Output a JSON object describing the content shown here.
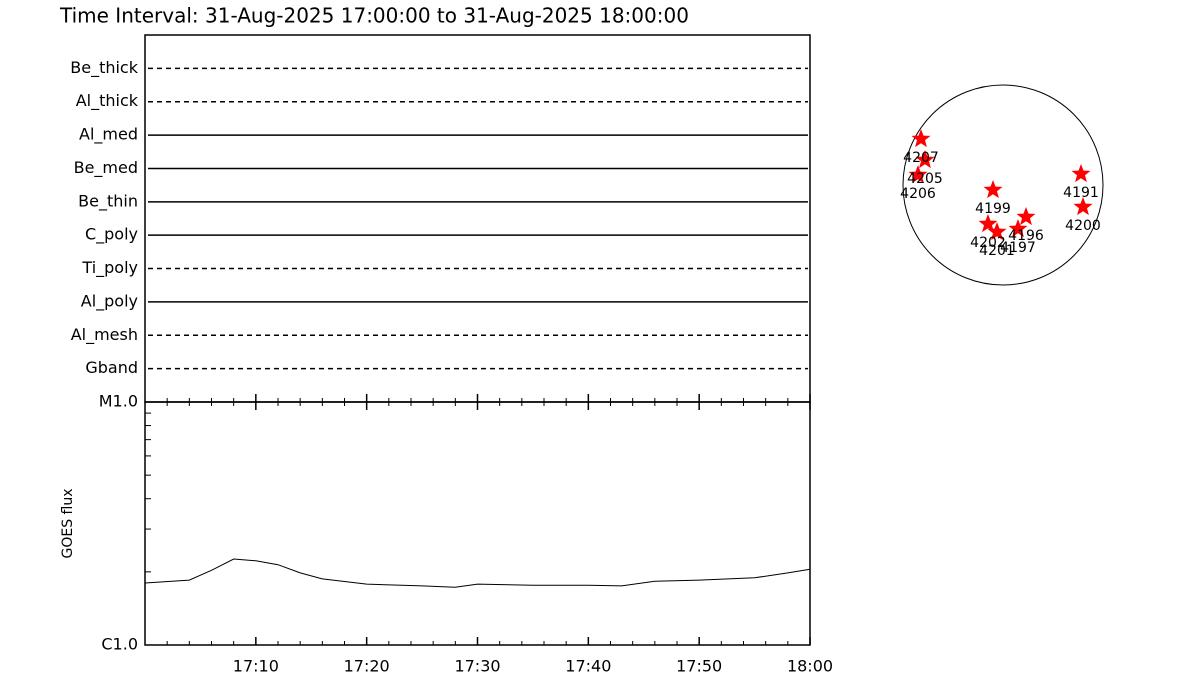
{
  "title": "Time Interval: 31-Aug-2025 17:00:00 to 31-Aug-2025 18:00:00",
  "chart_data": [
    {
      "type": "timeline",
      "categories": [
        "Be_thick",
        "Al_thick",
        "Al_med",
        "Be_med",
        "Be_thin",
        "C_poly",
        "Ti_poly",
        "Al_poly",
        "Al_mesh",
        "Gband"
      ],
      "line_styles": [
        "dashed",
        "dashed",
        "solid",
        "solid",
        "solid",
        "solid",
        "dashed",
        "solid",
        "dashed",
        "dashed"
      ],
      "xlim": [
        "17:00",
        "18:00"
      ]
    },
    {
      "type": "line",
      "ylabel": "GOES flux",
      "log_y": true,
      "color": "#000000",
      "x": [
        "17:00",
        "17:04",
        "17:06",
        "17:08",
        "17:10",
        "17:12",
        "17:14",
        "17:16",
        "17:20",
        "17:25",
        "17:28",
        "17:30",
        "17:35",
        "17:40",
        "17:43",
        "17:46",
        "17:50",
        "17:55",
        "17:58",
        "18:00"
      ],
      "values": [
        1.8e-06,
        1.85e-06,
        2.03e-06,
        2.26e-06,
        2.22e-06,
        2.14e-06,
        1.98e-06,
        1.87e-06,
        1.78e-06,
        1.75e-06,
        1.73e-06,
        1.78e-06,
        1.76e-06,
        1.76e-06,
        1.75e-06,
        1.83e-06,
        1.85e-06,
        1.89e-06,
        1.98e-06,
        2.05e-06
      ],
      "xlim": [
        "17:00",
        "18:00"
      ],
      "xticks": [
        "17:10",
        "17:20",
        "17:30",
        "17:40",
        "17:50",
        "18:00"
      ],
      "minor_xticks": [
        "17:02",
        "17:04",
        "17:06",
        "17:08",
        "17:12",
        "17:14",
        "17:16",
        "17:18",
        "17:22",
        "17:24",
        "17:26",
        "17:28",
        "17:32",
        "17:34",
        "17:36",
        "17:38",
        "17:42",
        "17:44",
        "17:46",
        "17:48",
        "17:52",
        "17:54",
        "17:56",
        "17:58"
      ],
      "ylim": [
        1e-06,
        1e-05
      ],
      "yticks": [
        {
          "value": 1e-06,
          "label": "C1.0"
        },
        {
          "value": 1e-05,
          "label": "M1.0"
        }
      ],
      "minor_yticks": [
        2e-06,
        3e-06,
        4e-06,
        5e-06,
        6e-06,
        7e-06,
        8e-06,
        9e-06
      ]
    },
    {
      "type": "scatter",
      "color": "#ff0000",
      "labels": [
        "4207",
        "4205",
        "4206",
        "4199",
        "4191",
        "4200",
        "4202",
        "4201",
        "4196",
        "4197"
      ],
      "x": [
        -0.82,
        -0.78,
        -0.85,
        -0.1,
        0.78,
        0.8,
        -0.15,
        -0.06,
        0.23,
        0.15
      ],
      "y": [
        0.46,
        0.25,
        0.1,
        -0.05,
        0.11,
        -0.22,
        -0.39,
        -0.47,
        -0.32,
        -0.44
      ],
      "xlim": [
        -1,
        1
      ],
      "ylim": [
        -1,
        1
      ]
    }
  ]
}
